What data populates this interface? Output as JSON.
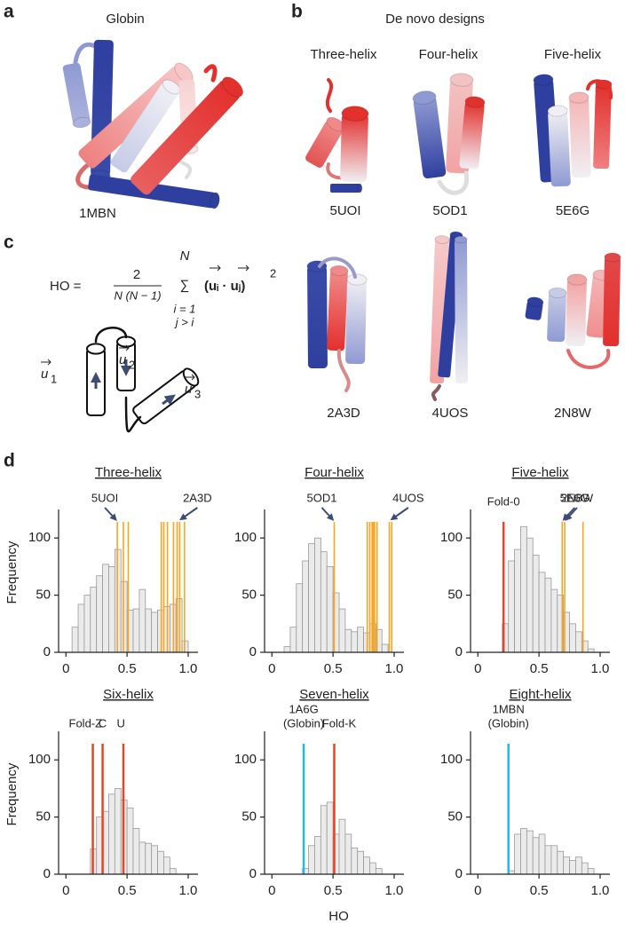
{
  "panels": {
    "a": {
      "label": "a",
      "title": "Globin",
      "id": "1MBN"
    },
    "b": {
      "label": "b",
      "title": "De novo designs",
      "columns": [
        "Three-helix",
        "Four-helix",
        "Five-helix"
      ],
      "ids": [
        "5UOI",
        "5OD1",
        "5E6G",
        "2A3D",
        "4UOS",
        "2N8W"
      ]
    },
    "c": {
      "label": "c",
      "formula": {
        "lhs": "HO =",
        "numerator": "2",
        "denominator": "N (N − 1)",
        "sum_top": "N",
        "sum_bottom": [
          "i = 1",
          "j > i"
        ],
        "term": "(uᵢ · uⱼ)",
        "power": "2"
      },
      "vectors": [
        {
          "symbol": "u",
          "sub": "1"
        },
        {
          "symbol": "u",
          "sub": "2"
        },
        {
          "symbol": "u",
          "sub": "3"
        }
      ]
    },
    "d": {
      "label": "d"
    }
  },
  "chart_data": [
    {
      "type": "histogram",
      "title": "Three-helix",
      "ylabel": "Frequency",
      "bins": [
        0.05,
        0.1,
        0.15,
        0.2,
        0.25,
        0.3,
        0.35,
        0.4,
        0.45,
        0.5,
        0.55,
        0.6,
        0.65,
        0.7,
        0.75,
        0.8,
        0.85,
        0.9,
        0.95,
        1.0
      ],
      "counts": [
        22,
        42,
        50,
        57,
        67,
        77,
        75,
        90,
        62,
        37,
        38,
        55,
        38,
        35,
        37,
        40,
        42,
        47,
        10
      ],
      "color": "#ebebeb",
      "xlim": [
        -0.06,
        1.08
      ],
      "ylim": [
        0,
        125
      ],
      "xticks": [
        0,
        0.5,
        {
          "value": 1,
          "label": "1.0"
        }
      ],
      "yticks": [
        0,
        50,
        100
      ],
      "marker_lines": {
        "color": "#f5a623",
        "values": [
          0.42,
          0.47,
          0.51,
          0.78,
          0.8,
          0.83,
          0.88,
          0.91,
          0.93,
          0.97
        ]
      },
      "annotations": [
        {
          "text": [
            "5UOI"
          ],
          "x": 0.42,
          "arrow": true
        },
        {
          "text": [
            "2A3D"
          ],
          "x": 0.93,
          "arrow": true
        }
      ]
    },
    {
      "type": "histogram",
      "title": "Four-helix",
      "bins": [
        0.1,
        0.15,
        0.2,
        0.25,
        0.3,
        0.35,
        0.4,
        0.45,
        0.5,
        0.55,
        0.6,
        0.65,
        0.7,
        0.75,
        0.8,
        0.85,
        0.9,
        0.95
      ],
      "counts": [
        5,
        22,
        60,
        80,
        95,
        100,
        88,
        75,
        52,
        38,
        20,
        18,
        22,
        17,
        25,
        20,
        7
      ],
      "color": "#ebebeb",
      "xlim": [
        -0.06,
        1.08
      ],
      "ylim": [
        0,
        125
      ],
      "xticks": [
        0,
        0.5,
        {
          "value": 1,
          "label": "1.0"
        }
      ],
      "yticks": [
        0,
        50,
        100
      ],
      "marker_lines": {
        "color": "#f5a623",
        "values": [
          0.51,
          0.78,
          0.8,
          0.82,
          0.83,
          0.84,
          0.86,
          0.96,
          0.98
        ]
      },
      "annotations": [
        {
          "text": [
            "5OD1"
          ],
          "x": 0.51,
          "arrow": true
        },
        {
          "text": [
            "4UOS"
          ],
          "x": 0.97,
          "arrow": true
        }
      ]
    },
    {
      "type": "histogram",
      "title": "Five-helix",
      "bins": [
        0.2,
        0.25,
        0.3,
        0.35,
        0.4,
        0.45,
        0.5,
        0.55,
        0.6,
        0.65,
        0.7,
        0.75,
        0.8,
        0.85,
        0.9,
        0.95
      ],
      "counts": [
        25,
        80,
        90,
        110,
        100,
        85,
        70,
        65,
        55,
        50,
        35,
        25,
        18,
        10,
        3
      ],
      "color": "#ebebeb",
      "xlim": [
        -0.06,
        1.08
      ],
      "ylim": [
        0,
        125
      ],
      "xticks": [
        0,
        0.5,
        {
          "value": 1,
          "label": "1.0"
        }
      ],
      "yticks": [
        0,
        50,
        100
      ],
      "marker_lines": {
        "color": "#f5a623",
        "values": [
          0.69,
          0.71,
          0.86
        ]
      },
      "reference_lines": [
        {
          "x": 0.21,
          "color": "#e8442a"
        }
      ],
      "annotations": [
        {
          "text": [
            "Fold-0"
          ],
          "x": 0.21,
          "arrow": false
        },
        {
          "text": [
            "5E6G"
          ],
          "x": 0.69,
          "arrow": true
        },
        {
          "text": [
            "2N8W"
          ],
          "x": 0.71,
          "arrow": true
        }
      ]
    },
    {
      "type": "histogram",
      "title": "Six-helix",
      "ylabel": "Frequency",
      "bins": [
        0.2,
        0.25,
        0.3,
        0.35,
        0.4,
        0.45,
        0.5,
        0.55,
        0.6,
        0.65,
        0.7,
        0.75,
        0.8,
        0.85,
        0.9
      ],
      "counts": [
        22,
        50,
        55,
        70,
        75,
        65,
        58,
        40,
        28,
        27,
        25,
        20,
        15,
        5
      ],
      "color": "#ebebeb",
      "xlim": [
        -0.06,
        1.08
      ],
      "ylim": [
        0,
        125
      ],
      "xticks": [
        0,
        0.5,
        {
          "value": 1,
          "label": "1.0"
        }
      ],
      "yticks": [
        0,
        50,
        100
      ],
      "reference_lines": [
        {
          "x": 0.22,
          "color": "#e8442a"
        },
        {
          "x": 0.3,
          "color": "#e8442a"
        },
        {
          "x": 0.47,
          "color": "#e8442a"
        }
      ],
      "annotations": [
        {
          "text": [
            "Fold-Z"
          ],
          "x": 0.16,
          "arrow": false
        },
        {
          "text": [
            "C"
          ],
          "x": 0.3,
          "arrow": false
        },
        {
          "text": [
            "U"
          ],
          "x": 0.45,
          "arrow": false
        }
      ]
    },
    {
      "type": "histogram",
      "title": "Seven-helix",
      "xlabel": "HO",
      "bins": [
        0.25,
        0.3,
        0.35,
        0.4,
        0.45,
        0.5,
        0.55,
        0.6,
        0.65,
        0.7,
        0.75,
        0.8,
        0.85,
        0.9
      ],
      "counts": [
        5,
        25,
        33,
        60,
        63,
        35,
        48,
        35,
        23,
        20,
        15,
        10,
        5
      ],
      "color": "#ebebeb",
      "xlim": [
        -0.06,
        1.08
      ],
      "ylim": [
        0,
        125
      ],
      "xticks": [
        0,
        0.5,
        {
          "value": 1,
          "label": "1.0"
        }
      ],
      "yticks": [
        0,
        50,
        100
      ],
      "reference_lines": [
        {
          "x": 0.26,
          "color": "#29b6e8"
        },
        {
          "x": 0.51,
          "color": "#e8442a"
        }
      ],
      "annotations": [
        {
          "text": [
            "1A6G",
            "(Globin)"
          ],
          "x": 0.26,
          "arrow": false
        },
        {
          "text": [
            "Fold-K"
          ],
          "x": 0.55,
          "arrow": false
        }
      ]
    },
    {
      "type": "histogram",
      "title": "Eight-helix",
      "bins": [
        0.25,
        0.3,
        0.35,
        0.4,
        0.45,
        0.5,
        0.55,
        0.6,
        0.65,
        0.7,
        0.75,
        0.8,
        0.85,
        0.9,
        0.95
      ],
      "counts": [
        3,
        35,
        40,
        38,
        32,
        35,
        25,
        25,
        20,
        15,
        12,
        15,
        10,
        5
      ],
      "color": "#ebebeb",
      "xlim": [
        -0.06,
        1.08
      ],
      "ylim": [
        0,
        125
      ],
      "xticks": [
        0,
        0.5,
        {
          "value": 1,
          "label": "1.0"
        }
      ],
      "yticks": [
        0,
        50,
        100
      ],
      "reference_lines": [
        {
          "x": 0.25,
          "color": "#29b6e8"
        }
      ],
      "annotations": [
        {
          "text": [
            "1MBN",
            "(Globin)"
          ],
          "x": 0.25,
          "arrow": false
        }
      ]
    }
  ]
}
